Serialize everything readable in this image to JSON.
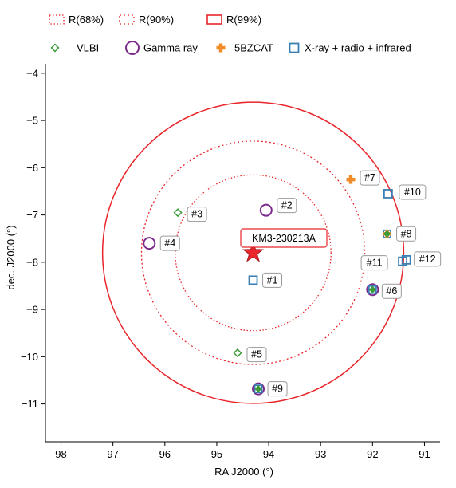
{
  "chart_data": {
    "type": "scatter",
    "title": "",
    "xlabel": "RA J2000 (°)",
    "ylabel": "dec. J2000 (°)",
    "xlim": [
      98.3,
      90.7
    ],
    "ylim": [
      -11.8,
      -3.8
    ],
    "x_ticks": [
      98,
      97,
      96,
      95,
      94,
      93,
      92,
      91
    ],
    "y_ticks": [
      -4,
      -5,
      -6,
      -7,
      -8,
      -9,
      -10,
      -11
    ],
    "x_tick_labels": [
      "98",
      "97",
      "96",
      "95",
      "94",
      "93",
      "92",
      "91"
    ],
    "y_tick_labels": [
      "−4",
      "−5",
      "−6",
      "−7",
      "−8",
      "−9",
      "−10",
      "−11"
    ],
    "grid": false,
    "legend_position": "top",
    "event": {
      "label": "KM3-230213A",
      "ra": 94.3,
      "dec": -7.8
    },
    "regions": [
      {
        "label": "R(68%)",
        "radius_deg": 1.5,
        "style": "dotted-thin",
        "color": "#e8262b"
      },
      {
        "label": "R(90%)",
        "radius_deg": 2.15,
        "style": "dotted",
        "color": "#e8262b"
      },
      {
        "label": "R(99%)",
        "radius_deg": 2.9,
        "style": "solid",
        "color": "#e8262b"
      }
    ],
    "series": [
      {
        "name": "VLBI",
        "marker": "diamond",
        "color": "#3a9c36"
      },
      {
        "name": "Gamma ray",
        "marker": "circle",
        "color": "#7b2c8c"
      },
      {
        "name": "5BZCAT",
        "marker": "plus",
        "color": "#f28c28"
      },
      {
        "name": "X-ray + radio + infrared",
        "marker": "square",
        "color": "#3a7fb4"
      }
    ],
    "points": [
      {
        "label": "#1",
        "ra": 94.3,
        "dec": -8.38,
        "markers": [
          "X-ray + radio + infrared"
        ]
      },
      {
        "label": "#2",
        "ra": 94.05,
        "dec": -6.9,
        "markers": [
          "Gamma ray"
        ]
      },
      {
        "label": "#3",
        "ra": 95.75,
        "dec": -6.95,
        "markers": [
          "VLBI"
        ]
      },
      {
        "label": "#4",
        "ra": 96.3,
        "dec": -7.6,
        "markers": [
          "Gamma ray"
        ]
      },
      {
        "label": "#5",
        "ra": 94.6,
        "dec": -9.92,
        "markers": [
          "VLBI"
        ]
      },
      {
        "label": "#6",
        "ra": 92.0,
        "dec": -8.58,
        "markers": [
          "Gamma ray",
          "X-ray + radio + infrared",
          "VLBI"
        ]
      },
      {
        "label": "#7",
        "ra": 92.42,
        "dec": -6.25,
        "markers": [
          "5BZCAT"
        ]
      },
      {
        "label": "#8",
        "ra": 91.72,
        "dec": -7.4,
        "markers": [
          "X-ray + radio + infrared",
          "5BZCAT",
          "VLBI"
        ]
      },
      {
        "label": "#9",
        "ra": 94.2,
        "dec": -10.68,
        "markers": [
          "Gamma ray",
          "X-ray + radio + infrared",
          "VLBI"
        ]
      },
      {
        "label": "#10",
        "ra": 91.7,
        "dec": -6.55,
        "markers": [
          "X-ray + radio + infrared"
        ]
      },
      {
        "label": "#11",
        "ra": 91.42,
        "dec": -7.98,
        "markers": [
          "X-ray + radio + infrared"
        ]
      },
      {
        "label": "#12",
        "ra": 91.35,
        "dec": -7.95,
        "markers": [
          "X-ray + radio + infrared"
        ]
      }
    ]
  }
}
